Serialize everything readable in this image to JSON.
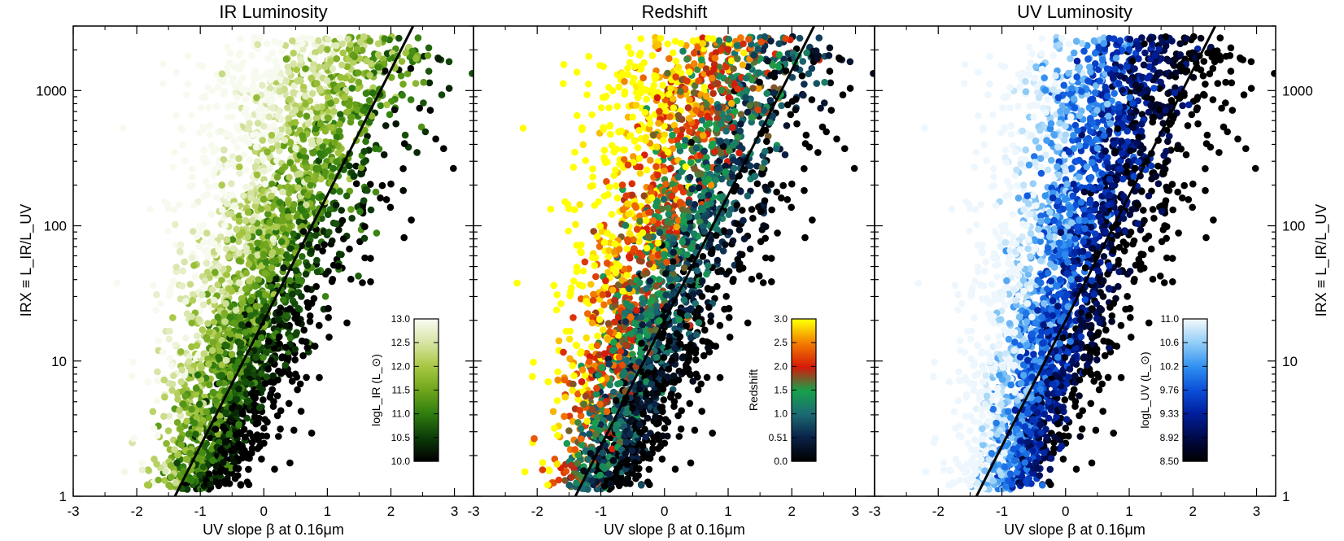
{
  "chart_data": [
    {
      "type": "scatter",
      "title": "IR Luminosity",
      "xlabel": "UV slope β at 0.16μm",
      "ylabel": "IRX ≡ L_IR/L_UV",
      "xlim": [
        -3,
        3.3
      ],
      "ylim": [
        1,
        3000
      ],
      "yscale": "log",
      "x_ticks": [
        "-3",
        "-2",
        "-1",
        "0",
        "1",
        "2",
        "3"
      ],
      "y_ticks": [
        "1",
        "10",
        "100",
        "1000"
      ],
      "relation_line": {
        "points": [
          [
            -1.4,
            1.0
          ],
          [
            2.35,
            3000.0
          ]
        ]
      },
      "colorbar": {
        "label": "logL_IR (L_⊙)",
        "ticks": [
          "10.0",
          "10.5",
          "11.0",
          "11.5",
          "12.0",
          "12.5",
          "13.0"
        ],
        "range": [
          10.0,
          13.0
        ],
        "colors": [
          "#000000",
          "#0d3d08",
          "#2f7d10",
          "#6ea51c",
          "#a6c640",
          "#d4e3a0",
          "#f7faee"
        ]
      },
      "points_summary": {
        "n_points": "~3000",
        "trend": "IRX increases with beta; brighter (lighter) galaxies at bluer beta and higher IRX"
      }
    },
    {
      "type": "scatter",
      "title": "Redshift",
      "xlabel": "UV slope β at 0.16μm",
      "xlim": [
        -3,
        3.3
      ],
      "ylim": [
        1,
        3000
      ],
      "yscale": "log",
      "x_ticks": [
        "-3",
        "-2",
        "-1",
        "0",
        "1",
        "2",
        "3"
      ],
      "relation_line": {
        "points": [
          [
            -1.4,
            1.0
          ],
          [
            2.35,
            3000.0
          ]
        ]
      },
      "colorbar": {
        "label": "Redshift",
        "ticks": [
          "0.0",
          "0.51",
          "1.0",
          "1.5",
          "2.0",
          "2.5",
          "3.0"
        ],
        "range": [
          0.0,
          3.0
        ],
        "colors": [
          "#000000",
          "#0a2148",
          "#1b6b73",
          "#17a14a",
          "#d41a0a",
          "#f27a00",
          "#ffff00"
        ]
      },
      "points_summary": {
        "n_points": "~3000",
        "trend": "higher-redshift galaxies at bluer beta and high IRX"
      }
    },
    {
      "type": "scatter",
      "title": "UV Luminosity",
      "xlabel": "UV slope β at 0.16μm",
      "ylabel": "IRX ≡ L_IR/L_UV",
      "xlim": [
        -3,
        3.3
      ],
      "ylim": [
        1,
        3000
      ],
      "yscale": "log",
      "x_ticks": [
        "-3",
        "-2",
        "-1",
        "0",
        "1",
        "2",
        "3"
      ],
      "y_ticks": [
        "1",
        "10",
        "100",
        "1000"
      ],
      "relation_line": {
        "points": [
          [
            -1.4,
            1.0
          ],
          [
            2.35,
            3000.0
          ]
        ]
      },
      "colorbar": {
        "label": "logL_UV (L_⊙)",
        "ticks": [
          "8.50",
          "8.92",
          "9.33",
          "9.76",
          "10.2",
          "10.6",
          "11.0"
        ],
        "range": [
          8.5,
          11.0
        ],
        "colors": [
          "#000000",
          "#000a4a",
          "#001e9b",
          "#0a4ed8",
          "#2f8ff0",
          "#8ecbf7",
          "#eef7fd"
        ]
      },
      "points_summary": {
        "n_points": "~3000",
        "trend": "UV-bright (light blue) galaxies at bluer beta; faint (dark) at redder beta"
      }
    }
  ]
}
